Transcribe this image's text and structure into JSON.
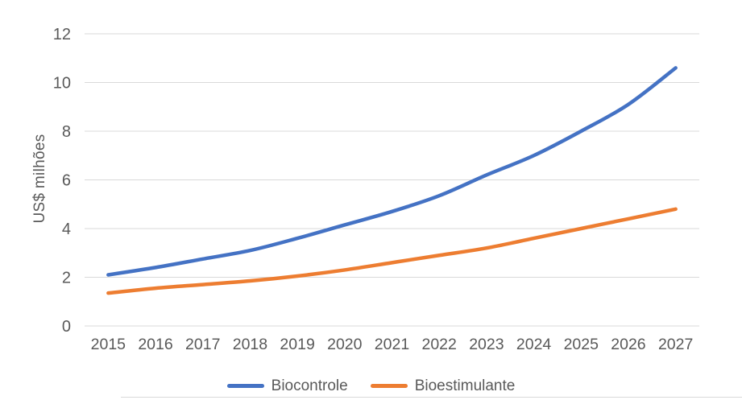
{
  "chart_data": {
    "type": "line",
    "title": "",
    "x": [
      "2015",
      "2016",
      "2017",
      "2018",
      "2019",
      "2020",
      "2021",
      "2022",
      "2023",
      "2024",
      "2025",
      "2026",
      "2027"
    ],
    "series": [
      {
        "name": "Biocontrole",
        "color": "#4472C4",
        "values": [
          2.1,
          2.4,
          2.75,
          3.1,
          3.6,
          4.15,
          4.7,
          5.35,
          6.2,
          7.0,
          8.0,
          9.1,
          10.6
        ]
      },
      {
        "name": "Bioestimulante",
        "color": "#ED7D31",
        "values": [
          1.35,
          1.55,
          1.7,
          1.85,
          2.05,
          2.3,
          2.6,
          2.9,
          3.2,
          3.6,
          4.0,
          4.4,
          4.8
        ]
      }
    ],
    "xlabel": "",
    "ylabel": "US$ milhões",
    "ylim": [
      0,
      12
    ],
    "yticks": [
      0,
      2,
      4,
      6,
      8,
      10,
      12
    ],
    "grid": true,
    "smooth": true,
    "legend_position": "bottom"
  },
  "styles": {
    "axis_text_color": "#595959",
    "gridline_color": "#d9d9d9",
    "background": "#ffffff",
    "line_width": 4.5
  }
}
